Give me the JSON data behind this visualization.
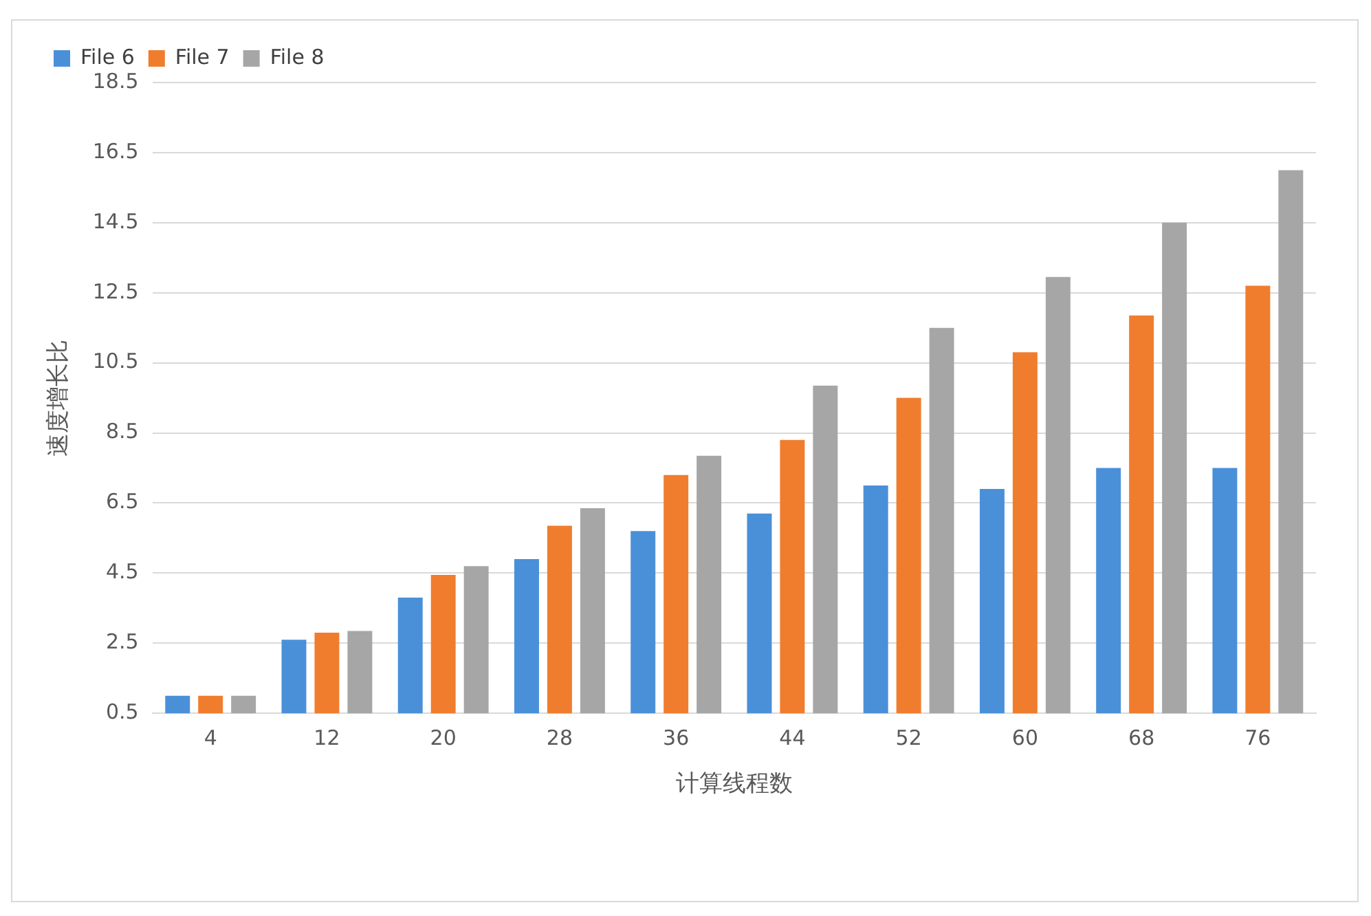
{
  "chart_data": {
    "type": "bar",
    "xlabel": "计算线程数",
    "ylabel": "速度增长比",
    "categories": [
      "4",
      "12",
      "20",
      "28",
      "36",
      "44",
      "52",
      "60",
      "68",
      "76"
    ],
    "series": [
      {
        "name": "File 6",
        "color": "#4a90d9",
        "values": [
          1.0,
          2.6,
          3.8,
          4.9,
          5.7,
          6.2,
          7.0,
          6.9,
          7.5,
          7.5
        ]
      },
      {
        "name": "File 7",
        "color": "#f07d2e",
        "values": [
          1.0,
          2.8,
          4.45,
          5.85,
          7.3,
          8.3,
          9.5,
          10.8,
          11.85,
          12.7
        ]
      },
      {
        "name": "File 8",
        "color": "#a6a6a6",
        "values": [
          1.0,
          2.85,
          4.7,
          6.35,
          7.85,
          9.85,
          11.5,
          12.95,
          14.5,
          16.0
        ]
      }
    ],
    "ylim": [
      0.5,
      18.5
    ],
    "yticks": [
      0.5,
      2.5,
      4.5,
      6.5,
      8.5,
      10.5,
      12.5,
      14.5,
      16.5,
      18.5
    ],
    "grid": "y",
    "legend": "top left"
  }
}
